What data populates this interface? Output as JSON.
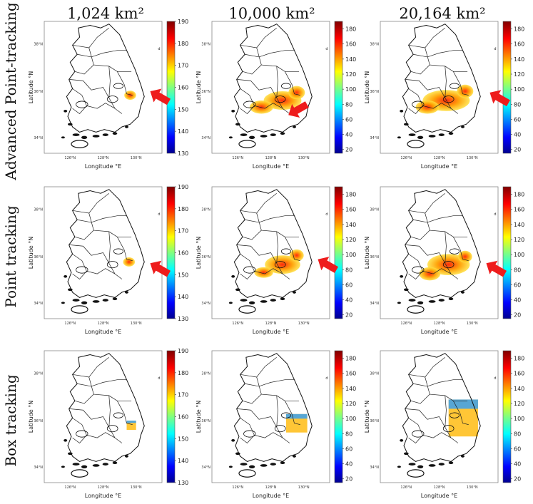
{
  "column_headers": [
    "1,024 km²",
    "10,000 km²",
    "20,164 km²"
  ],
  "row_labels": [
    "Advanced Point-tracking",
    "Point tracking",
    "Box tracking"
  ],
  "chart_data": {
    "type": "heatmap",
    "layout": "3x3 grid of maps of South Korea",
    "xlabel": "Longitude °E",
    "ylabel": "Latitude °N",
    "x_ticks": [
      "126°N",
      "128°N",
      "130°N"
    ],
    "y_ticks": [
      "34°N",
      "36°N",
      "38°N"
    ],
    "colormap": "jet",
    "colorbar_unit": "d",
    "arrow_color": "#ee1c1c",
    "panels": [
      {
        "row": "Advanced Point-tracking",
        "area": "1,024 km²",
        "colorbar": [
          130,
          190
        ],
        "colorbar_ticks": [
          190,
          180,
          170,
          160,
          150,
          140,
          130
        ],
        "arrow": true
      },
      {
        "row": "Advanced Point-tracking",
        "area": "10,000 km²",
        "colorbar": [
          15,
          190
        ],
        "colorbar_ticks": [
          180,
          160,
          140,
          120,
          100,
          80,
          60,
          40,
          20
        ],
        "arrow": true
      },
      {
        "row": "Advanced Point-tracking",
        "area": "20,164 km²",
        "colorbar": [
          15,
          190
        ],
        "colorbar_ticks": [
          180,
          160,
          140,
          120,
          100,
          80,
          60,
          40,
          20
        ],
        "arrow": true
      },
      {
        "row": "Point tracking",
        "area": "1,024 km²",
        "colorbar": [
          130,
          190
        ],
        "colorbar_ticks": [
          190,
          180,
          170,
          160,
          150,
          140,
          130
        ],
        "arrow": true
      },
      {
        "row": "Point tracking",
        "area": "10,000 km²",
        "colorbar": [
          15,
          190
        ],
        "colorbar_ticks": [
          180,
          160,
          140,
          120,
          100,
          80,
          60,
          40,
          20
        ],
        "arrow": true
      },
      {
        "row": "Point tracking",
        "area": "20,164 km²",
        "colorbar": [
          15,
          190
        ],
        "colorbar_ticks": [
          180,
          160,
          140,
          120,
          100,
          80,
          60,
          40,
          20
        ],
        "arrow": true
      },
      {
        "row": "Box tracking",
        "area": "1,024 km²",
        "colorbar": [
          130,
          190
        ],
        "colorbar_ticks": [
          190,
          180,
          170,
          160,
          150,
          140,
          130
        ],
        "arrow": false
      },
      {
        "row": "Box tracking",
        "area": "10,000 km²",
        "colorbar": [
          15,
          190
        ],
        "colorbar_ticks": [
          180,
          160,
          140,
          120,
          100,
          80,
          60,
          40,
          20
        ],
        "arrow": false
      },
      {
        "row": "Box tracking",
        "area": "20,164 km²",
        "colorbar": [
          15,
          190
        ],
        "colorbar_ticks": [
          180,
          160,
          140,
          120,
          100,
          80,
          60,
          40,
          20
        ],
        "arrow": false
      }
    ]
  }
}
